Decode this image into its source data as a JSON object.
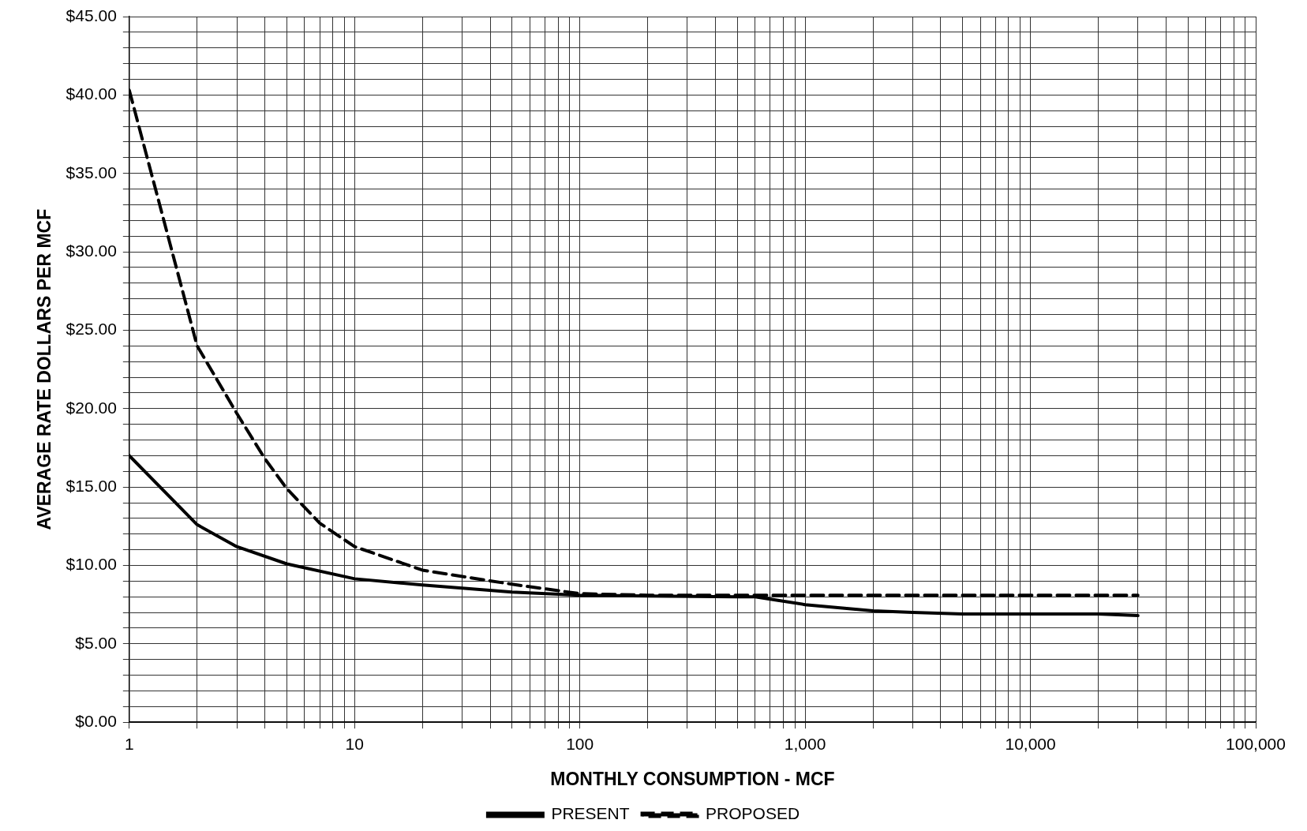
{
  "chart_data": {
    "type": "line",
    "xlabel": "MONTHLY CONSUMPTION - MCF",
    "ylabel": "AVERAGE RATE DOLLARS PER MCF",
    "log": "x",
    "grid": true,
    "legend": "bottom",
    "marker": "none",
    "xlim": [
      1,
      100000
    ],
    "ylim": [
      0,
      45
    ],
    "xticks": [
      {
        "value": 1,
        "label": "1"
      },
      {
        "value": 2,
        "label": null
      },
      {
        "value": 3,
        "label": null
      },
      {
        "value": 4,
        "label": null
      },
      {
        "value": 5,
        "label": null
      },
      {
        "value": 6,
        "label": null
      },
      {
        "value": 7,
        "label": null
      },
      {
        "value": 8,
        "label": null
      },
      {
        "value": 9,
        "label": null
      },
      {
        "value": 10,
        "label": "10"
      },
      {
        "value": 20,
        "label": null
      },
      {
        "value": 30,
        "label": null
      },
      {
        "value": 40,
        "label": null
      },
      {
        "value": 50,
        "label": null
      },
      {
        "value": 60,
        "label": null
      },
      {
        "value": 70,
        "label": null
      },
      {
        "value": 80,
        "label": null
      },
      {
        "value": 90,
        "label": null
      },
      {
        "value": 100,
        "label": "100"
      },
      {
        "value": 200,
        "label": null
      },
      {
        "value": 300,
        "label": null
      },
      {
        "value": 400,
        "label": null
      },
      {
        "value": 500,
        "label": null
      },
      {
        "value": 600,
        "label": null
      },
      {
        "value": 700,
        "label": null
      },
      {
        "value": 800,
        "label": null
      },
      {
        "value": 900,
        "label": null
      },
      {
        "value": 1000,
        "label": "1,000"
      },
      {
        "value": 2000,
        "label": null
      },
      {
        "value": 3000,
        "label": null
      },
      {
        "value": 4000,
        "label": null
      },
      {
        "value": 5000,
        "label": null
      },
      {
        "value": 6000,
        "label": null
      },
      {
        "value": 7000,
        "label": null
      },
      {
        "value": 8000,
        "label": null
      },
      {
        "value": 9000,
        "label": null
      },
      {
        "value": 10000,
        "label": "10,000"
      },
      {
        "value": 20000,
        "label": null
      },
      {
        "value": 30000,
        "label": null
      },
      {
        "value": 40000,
        "label": null
      },
      {
        "value": 50000,
        "label": null
      },
      {
        "value": 60000,
        "label": null
      },
      {
        "value": 70000,
        "label": null
      },
      {
        "value": 80000,
        "label": null
      },
      {
        "value": 90000,
        "label": null
      },
      {
        "value": 100000,
        "label": "100,000"
      }
    ],
    "yticks": [
      {
        "value": 0,
        "label": "$0.00"
      },
      {
        "value": 1,
        "label": null
      },
      {
        "value": 2,
        "label": null
      },
      {
        "value": 3,
        "label": null
      },
      {
        "value": 4,
        "label": null
      },
      {
        "value": 5,
        "label": "$5.00"
      },
      {
        "value": 6,
        "label": null
      },
      {
        "value": 7,
        "label": null
      },
      {
        "value": 8,
        "label": null
      },
      {
        "value": 9,
        "label": null
      },
      {
        "value": 10,
        "label": "$10.00"
      },
      {
        "value": 11,
        "label": null
      },
      {
        "value": 12,
        "label": null
      },
      {
        "value": 13,
        "label": null
      },
      {
        "value": 14,
        "label": null
      },
      {
        "value": 15,
        "label": "$15.00"
      },
      {
        "value": 16,
        "label": null
      },
      {
        "value": 17,
        "label": null
      },
      {
        "value": 18,
        "label": null
      },
      {
        "value": 19,
        "label": null
      },
      {
        "value": 20,
        "label": "$20.00"
      },
      {
        "value": 21,
        "label": null
      },
      {
        "value": 22,
        "label": null
      },
      {
        "value": 23,
        "label": null
      },
      {
        "value": 24,
        "label": null
      },
      {
        "value": 25,
        "label": "$25.00"
      },
      {
        "value": 26,
        "label": null
      },
      {
        "value": 27,
        "label": null
      },
      {
        "value": 28,
        "label": null
      },
      {
        "value": 29,
        "label": null
      },
      {
        "value": 30,
        "label": "$30.00"
      },
      {
        "value": 31,
        "label": null
      },
      {
        "value": 32,
        "label": null
      },
      {
        "value": 33,
        "label": null
      },
      {
        "value": 34,
        "label": null
      },
      {
        "value": 35,
        "label": "$35.00"
      },
      {
        "value": 36,
        "label": null
      },
      {
        "value": 37,
        "label": null
      },
      {
        "value": 38,
        "label": null
      },
      {
        "value": 39,
        "label": null
      },
      {
        "value": 40,
        "label": "$40.00"
      },
      {
        "value": 41,
        "label": null
      },
      {
        "value": 42,
        "label": null
      },
      {
        "value": 43,
        "label": null
      },
      {
        "value": 44,
        "label": null
      },
      {
        "value": 45,
        "label": "$45.00"
      }
    ],
    "series": [
      {
        "name": "PRESENT",
        "color": "#000000",
        "line_style": "solid",
        "x": [
          1,
          2,
          3,
          5,
          10,
          20,
          50,
          100,
          200,
          500,
          600,
          1000,
          2000,
          3000,
          5000,
          10000,
          20000,
          30000
        ],
        "values": [
          17.0,
          12.6,
          11.2,
          10.1,
          9.15,
          8.75,
          8.3,
          8.1,
          8.05,
          8.0,
          8.0,
          7.5,
          7.1,
          7.0,
          6.9,
          6.9,
          6.9,
          6.8
        ]
      },
      {
        "name": "PROPOSED",
        "color": "#000000",
        "line_style": "dashed",
        "x": [
          1,
          2,
          3,
          4,
          5,
          7,
          10,
          20,
          50,
          100,
          200,
          500,
          1000,
          2000,
          5000,
          10000,
          20000,
          30000
        ],
        "values": [
          40.3,
          24.0,
          19.7,
          16.8,
          14.9,
          12.7,
          11.2,
          9.7,
          8.8,
          8.2,
          8.1,
          8.1,
          8.1,
          8.1,
          8.1,
          8.1,
          8.1,
          8.1
        ]
      }
    ]
  }
}
